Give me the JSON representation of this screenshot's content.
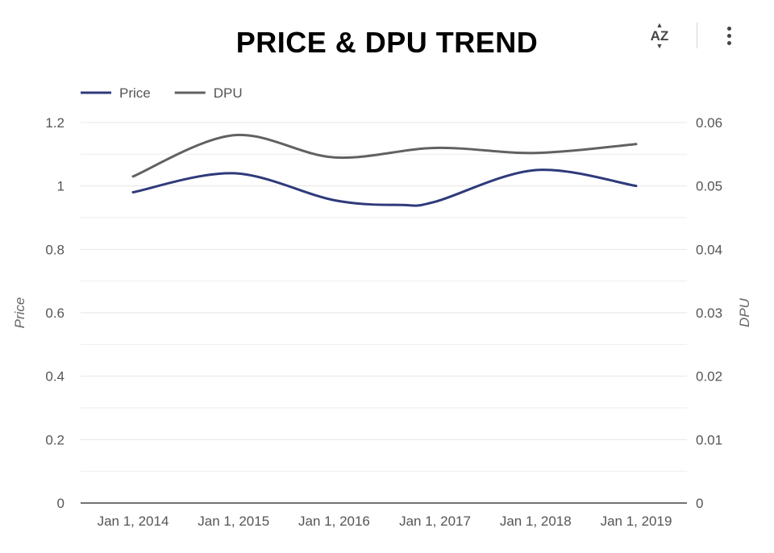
{
  "chart_data": {
    "type": "line",
    "title": "PRICE & DPU TREND",
    "x": [
      "2014-01-01",
      "2015-01-01",
      "2016-01-01",
      "2017-01-01",
      "2018-01-01",
      "2019-01-01"
    ],
    "x_tick_labels": [
      "Jan 1, 2014",
      "Jan 1, 2015",
      "Jan 1, 2016",
      "Jan 1, 2017",
      "Jan 1, 2018",
      "Jan 1, 2019"
    ],
    "series": [
      {
        "name": "Price",
        "axis": "left",
        "color": "#2e3a7a",
        "points": [
          {
            "x": "2014-01-01",
            "y": 0.98
          },
          {
            "x": "2015-01-01",
            "y": 1.04
          },
          {
            "x": "2016-01-01",
            "y": 0.955
          },
          {
            "x": "2016-09-01",
            "y": 0.94
          },
          {
            "x": "2017-01-01",
            "y": 0.95
          },
          {
            "x": "2018-01-01",
            "y": 1.05
          },
          {
            "x": "2019-01-01",
            "y": 1.0
          }
        ]
      },
      {
        "name": "DPU",
        "axis": "right",
        "color": "#616161",
        "points": [
          {
            "x": "2014-01-01",
            "y": 0.0515
          },
          {
            "x": "2015-01-01",
            "y": 0.058
          },
          {
            "x": "2016-01-01",
            "y": 0.0545
          },
          {
            "x": "2017-01-01",
            "y": 0.056
          },
          {
            "x": "2018-01-01",
            "y": 0.0552
          },
          {
            "x": "2019-01-01",
            "y": 0.0566
          }
        ]
      }
    ],
    "y_left": {
      "label": "Price",
      "range": [
        0,
        1.2
      ],
      "ticks": [
        0,
        0.2,
        0.4,
        0.6,
        0.8,
        1,
        1.2
      ],
      "tick_labels": [
        "0",
        "0.2",
        "0.4",
        "0.6",
        "0.8",
        "1",
        "1.2"
      ]
    },
    "y_right": {
      "label": "DPU",
      "range": [
        0,
        0.06
      ],
      "ticks": [
        0,
        0.01,
        0.02,
        0.03,
        0.04,
        0.05,
        0.06
      ],
      "tick_labels": [
        "0",
        "0.01",
        "0.02",
        "0.03",
        "0.04",
        "0.05",
        "0.06"
      ]
    },
    "grid": true,
    "legend": {
      "position": "top-left",
      "items": [
        "Price",
        "DPU"
      ]
    }
  },
  "toolbar": {
    "sort_icon": "sort-az-icon",
    "sort_glyph": "AZ",
    "more_icon": "more-vert-icon"
  }
}
